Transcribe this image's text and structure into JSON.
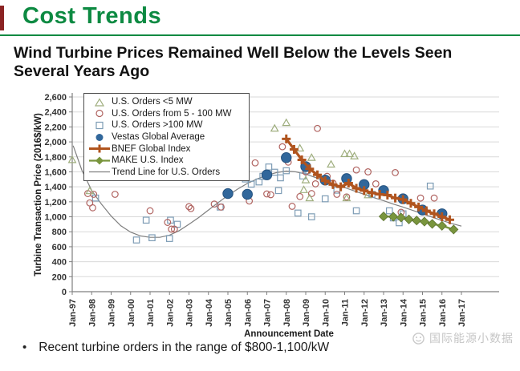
{
  "header": {
    "title": "Cost Trends",
    "subtitle": "Wind Turbine Prices Remained Well Below the Levels Seen Several Years Ago"
  },
  "footer": {
    "bullet_marker": "•",
    "bullet": "Recent turbine orders in the range of $800-1,100/kW"
  },
  "watermark": {
    "text": "国际能源小数据",
    "icon": "smiley-logo-icon",
    "color": "#c6c6c6"
  },
  "colors": {
    "accent_green": "#0d8a42",
    "red_bar": "#8b2323",
    "gridline": "#d9d9d9",
    "axis": "#7f7f7f"
  },
  "chart_data": {
    "type": "scatter",
    "title": "",
    "xlabel": "Announcement Date",
    "ylabel": "Turbine Transaction Price (2016$/kW)",
    "ylim": [
      0,
      2600
    ],
    "ytick_step": 200,
    "grid": true,
    "legend_position": "top-left-inside",
    "x_ticks": [
      1997,
      1998,
      1999,
      2000,
      2001,
      2002,
      2003,
      2004,
      2005,
      2006,
      2007,
      2008,
      2009,
      2010,
      2011,
      2012,
      2013,
      2014,
      2015,
      2016,
      2017
    ],
    "x_ticklabels": [
      "Jan-97",
      "Jan-98",
      "Jan-99",
      "Jan-00",
      "Jan-01",
      "Jan-02",
      "Jan-03",
      "Jan-04",
      "Jan-05",
      "Jan-06",
      "Jan-07",
      "Jan-08",
      "Jan-09",
      "Jan-10",
      "Jan-11",
      "Jan-12",
      "Jan-13",
      "Jan-14",
      "Jan-15",
      "Jan-16",
      "Jan-17"
    ],
    "series": [
      {
        "id": "us-orders-lt-5mw",
        "name": "U.S. Orders <5 MW",
        "type": "scatter",
        "marker": "triangle",
        "color": "#9fae7e",
        "points": [
          [
            1997.0,
            1760
          ],
          [
            1997.9,
            1345
          ],
          [
            2007.4,
            2180
          ],
          [
            2008.0,
            2255
          ],
          [
            2008.7,
            1915
          ],
          [
            2009.0,
            1490
          ],
          [
            2008.9,
            1360
          ],
          [
            2009.2,
            1250
          ],
          [
            2009.3,
            1790
          ],
          [
            2010.3,
            1700
          ],
          [
            2011.0,
            1840
          ],
          [
            2011.25,
            1840
          ],
          [
            2011.5,
            1810
          ],
          [
            2011.1,
            1250
          ],
          [
            2012.2,
            1290
          ]
        ]
      },
      {
        "id": "us-orders-5-100mw",
        "name": "U.S. Orders from 5 - 100 MW",
        "type": "scatter",
        "marker": "circle",
        "color": "#b06360",
        "points": [
          [
            1997.8,
            1310
          ],
          [
            1998.1,
            1300
          ],
          [
            1997.9,
            1185
          ],
          [
            1998.05,
            1120
          ],
          [
            1999.2,
            1300
          ],
          [
            2001.0,
            1080
          ],
          [
            2001.9,
            925
          ],
          [
            2002.1,
            835
          ],
          [
            2002.25,
            835
          ],
          [
            2003.0,
            1135
          ],
          [
            2003.1,
            1110
          ],
          [
            2004.3,
            1170
          ],
          [
            2004.65,
            1130
          ],
          [
            2006.1,
            1210
          ],
          [
            2006.4,
            1720
          ],
          [
            2007.0,
            1305
          ],
          [
            2007.2,
            1295
          ],
          [
            2007.8,
            1935
          ],
          [
            2008.1,
            1730
          ],
          [
            2008.3,
            1140
          ],
          [
            2008.7,
            1270
          ],
          [
            2009.0,
            1600
          ],
          [
            2009.3,
            1310
          ],
          [
            2009.5,
            1440
          ],
          [
            2009.6,
            2180
          ],
          [
            2010.1,
            1540
          ],
          [
            2010.4,
            1450
          ],
          [
            2010.6,
            1300
          ],
          [
            2011.1,
            1265
          ],
          [
            2011.6,
            1625
          ],
          [
            2012.2,
            1600
          ],
          [
            2012.6,
            1440
          ],
          [
            2013.6,
            1590
          ],
          [
            2013.9,
            1060
          ],
          [
            2014.9,
            1250
          ],
          [
            2015.6,
            1250
          ]
        ]
      },
      {
        "id": "us-orders-gt-100mw",
        "name": "U.S. Orders >100 MW",
        "type": "scatter",
        "marker": "square",
        "color": "#7d9cb5",
        "points": [
          [
            1998.2,
            1250
          ],
          [
            2000.3,
            690
          ],
          [
            2000.8,
            955
          ],
          [
            2001.1,
            720
          ],
          [
            2002.0,
            710
          ],
          [
            2002.05,
            955
          ],
          [
            2002.4,
            900
          ],
          [
            2004.6,
            1130
          ],
          [
            2005.9,
            1505
          ],
          [
            2006.2,
            1435
          ],
          [
            2006.6,
            1465
          ],
          [
            2006.8,
            1540
          ],
          [
            2007.1,
            1665
          ],
          [
            2007.4,
            1595
          ],
          [
            2007.7,
            1520
          ],
          [
            2007.6,
            1350
          ],
          [
            2008.0,
            1615
          ],
          [
            2008.6,
            1050
          ],
          [
            2008.85,
            1545
          ],
          [
            2009.05,
            1615
          ],
          [
            2009.3,
            1000
          ],
          [
            2010.0,
            1240
          ],
          [
            2010.6,
            1355
          ],
          [
            2011.6,
            1080
          ],
          [
            2012.4,
            1300
          ],
          [
            2013.3,
            1080
          ],
          [
            2013.5,
            985
          ],
          [
            2013.8,
            920
          ],
          [
            2014.0,
            1040
          ],
          [
            2015.4,
            1410
          ]
        ]
      },
      {
        "id": "vestas-global-average",
        "name": "Vestas Global Average",
        "type": "scatter",
        "marker": "circle-filled",
        "color": "#31679b",
        "points": [
          [
            2005.0,
            1310
          ],
          [
            2006.0,
            1300
          ],
          [
            2007.0,
            1560
          ],
          [
            2008.0,
            1790
          ],
          [
            2009.0,
            1670
          ],
          [
            2010.0,
            1490
          ],
          [
            2011.1,
            1510
          ],
          [
            2012.0,
            1430
          ],
          [
            2013.0,
            1350
          ],
          [
            2014.0,
            1240
          ],
          [
            2015.0,
            1090
          ],
          [
            2016.0,
            1040
          ]
        ]
      },
      {
        "id": "bnef-global-index",
        "name": "BNEF Global Index",
        "type": "line",
        "marker": "plus",
        "color": "#b0541e",
        "points": [
          [
            2008.0,
            2040
          ],
          [
            2008.4,
            1900
          ],
          [
            2008.8,
            1760
          ],
          [
            2009.2,
            1640
          ],
          [
            2009.6,
            1560
          ],
          [
            2010.0,
            1480
          ],
          [
            2010.4,
            1430
          ],
          [
            2010.8,
            1400
          ],
          [
            2011.2,
            1450
          ],
          [
            2011.6,
            1380
          ],
          [
            2012.0,
            1350
          ],
          [
            2012.4,
            1320
          ],
          [
            2012.8,
            1300
          ],
          [
            2013.2,
            1290
          ],
          [
            2013.6,
            1250
          ],
          [
            2014.0,
            1230
          ],
          [
            2014.4,
            1180
          ],
          [
            2014.8,
            1130
          ],
          [
            2015.2,
            1080
          ],
          [
            2015.6,
            1040
          ],
          [
            2016.0,
            1000
          ],
          [
            2016.4,
            960
          ]
        ]
      },
      {
        "id": "make-us-index",
        "name": "MAKE U.S. Index",
        "type": "line",
        "marker": "diamond",
        "color": "#79953d",
        "points": [
          [
            2013.0,
            1005
          ],
          [
            2013.5,
            1000
          ],
          [
            2013.9,
            990
          ],
          [
            2014.3,
            965
          ],
          [
            2014.7,
            950
          ],
          [
            2015.1,
            935
          ],
          [
            2015.5,
            905
          ],
          [
            2016.0,
            880
          ],
          [
            2016.6,
            830
          ]
        ]
      },
      {
        "id": "trend-line",
        "name": "Trend Line for U.S. Orders",
        "type": "line",
        "marker": "none",
        "color": "#7f7f7f",
        "points": [
          [
            1997.05,
            1950
          ],
          [
            1997.5,
            1620
          ],
          [
            1998,
            1350
          ],
          [
            1998.5,
            1170
          ],
          [
            1999,
            1010
          ],
          [
            1999.5,
            880
          ],
          [
            2000,
            795
          ],
          [
            2000.5,
            745
          ],
          [
            2001,
            725
          ],
          [
            2001.5,
            725
          ],
          [
            2002,
            755
          ],
          [
            2002.5,
            815
          ],
          [
            2003,
            900
          ],
          [
            2003.5,
            990
          ],
          [
            2004,
            1090
          ],
          [
            2004.5,
            1190
          ],
          [
            2005,
            1285
          ],
          [
            2005.5,
            1370
          ],
          [
            2006,
            1445
          ],
          [
            2006.5,
            1505
          ],
          [
            2007,
            1555
          ],
          [
            2007.5,
            1590
          ],
          [
            2008,
            1610
          ],
          [
            2008.5,
            1600
          ],
          [
            2009,
            1570
          ],
          [
            2009.5,
            1525
          ],
          [
            2010,
            1480
          ],
          [
            2010.5,
            1435
          ],
          [
            2011,
            1390
          ],
          [
            2011.5,
            1345
          ],
          [
            2012,
            1300
          ],
          [
            2012.5,
            1255
          ],
          [
            2013,
            1215
          ],
          [
            2013.5,
            1170
          ],
          [
            2014,
            1130
          ],
          [
            2014.5,
            1085
          ],
          [
            2015,
            1040
          ],
          [
            2015.5,
            995
          ],
          [
            2016,
            950
          ],
          [
            2016.5,
            910
          ],
          [
            2017,
            875
          ]
        ]
      }
    ]
  }
}
